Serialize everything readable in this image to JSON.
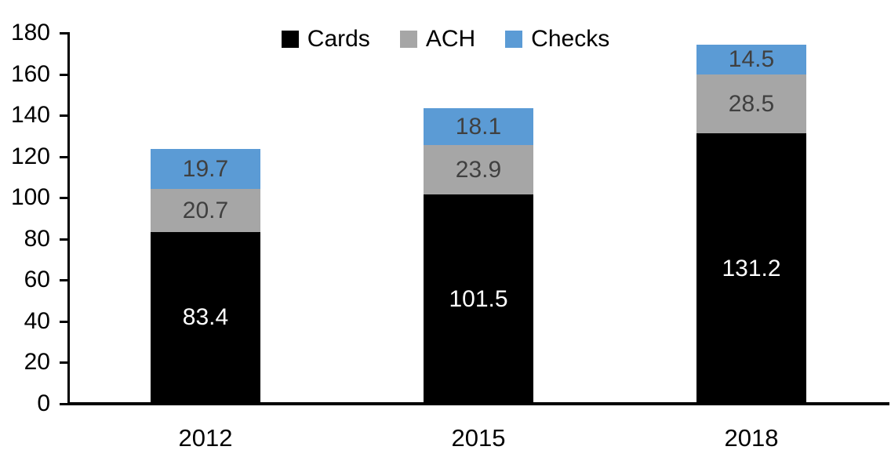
{
  "chart_data": {
    "type": "bar",
    "stacked": true,
    "title": "",
    "categories": [
      "2012",
      "2015",
      "2018"
    ],
    "series": [
      {
        "name": "Cards",
        "color": "#000000",
        "label_color": "#ffffff",
        "values": [
          83.4,
          101.5,
          131.2
        ]
      },
      {
        "name": "ACH",
        "color": "#a6a6a6",
        "label_color": "#404040",
        "values": [
          20.7,
          23.9,
          28.5
        ]
      },
      {
        "name": "Checks",
        "color": "#5b9bd5",
        "label_color": "#404040",
        "values": [
          19.7,
          18.1,
          14.5
        ]
      }
    ],
    "ylim": [
      0,
      180
    ],
    "yticks": [
      0,
      20,
      40,
      60,
      80,
      100,
      120,
      140,
      160,
      180
    ],
    "legend_position": "top",
    "legend_labels": [
      "Cards",
      "ACH",
      "Checks"
    ],
    "grid": false,
    "data_labels": true,
    "xlabel": "",
    "ylabel": ""
  }
}
